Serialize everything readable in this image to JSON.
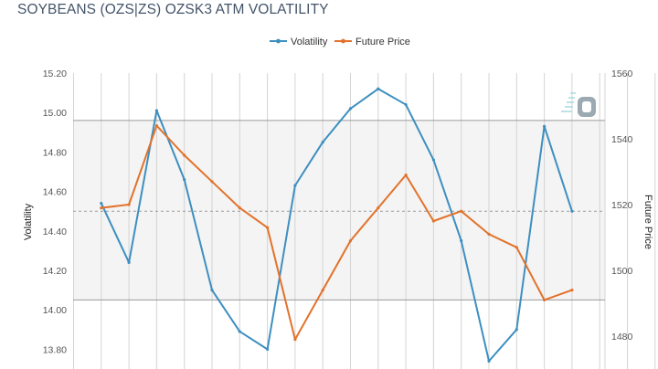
{
  "header": {
    "title": "SOYBEANS (OZS|ZS) OZSK3 ATM VOLATILITY"
  },
  "colors": {
    "volatility": "#3d8fc0",
    "future_price": "#e2722b",
    "band_fill": "#f4f4f4",
    "band_edge": "#9a9a9a",
    "grid": "#d4d4d4",
    "axis_text": "#555555"
  },
  "chart_data": {
    "type": "line",
    "legend_position": "top-center",
    "grid": true,
    "x": [
      0,
      1,
      2,
      3,
      4,
      5,
      6,
      7,
      8,
      9,
      10,
      11,
      12,
      13,
      14,
      15,
      16,
      17,
      18,
      19,
      20,
      21
    ],
    "series": [
      {
        "name": "Volatility",
        "axis": "left",
        "color": "#3d8fc0",
        "values": [
          null,
          14.54,
          14.24,
          15.01,
          14.66,
          14.1,
          13.89,
          13.8,
          14.63,
          14.85,
          15.02,
          15.12,
          15.04,
          14.76,
          14.35,
          13.74,
          13.9,
          14.93,
          14.5,
          null,
          null,
          null
        ]
      },
      {
        "name": "Future Price",
        "axis": "right",
        "color": "#e2722b",
        "values": [
          null,
          1519,
          1520,
          1544,
          1535,
          1527,
          1519,
          1513,
          1479,
          1494,
          1509,
          1519,
          1529,
          1515,
          1518,
          1511,
          1507,
          1491,
          1494,
          null,
          null,
          null
        ]
      }
    ],
    "y_left": {
      "label": "Volatility",
      "range": [
        13.7,
        15.2
      ],
      "ticks": [
        "13.80",
        "14.00",
        "14.20",
        "14.40",
        "14.60",
        "14.80",
        "15.00",
        "15.20"
      ]
    },
    "y_right": {
      "label": "Future Price",
      "range": [
        1470,
        1560
      ],
      "ticks": [
        "1480",
        "1500",
        "1520",
        "1540",
        "1560"
      ]
    },
    "band": {
      "axis": "left",
      "low": 14.05,
      "high": 14.96,
      "mid": 14.5
    }
  }
}
